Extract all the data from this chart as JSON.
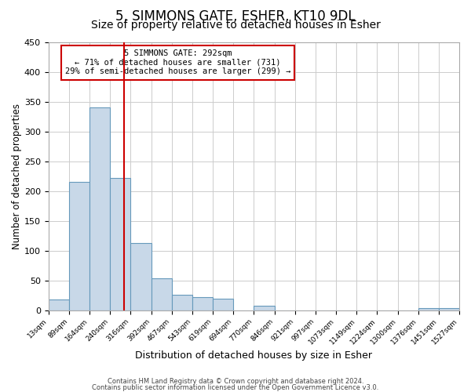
{
  "title": "5, SIMMONS GATE, ESHER, KT10 9DL",
  "subtitle": "Size of property relative to detached houses in Esher",
  "xlabel": "Distribution of detached houses by size in Esher",
  "ylabel": "Number of detached properties",
  "bar_color": "#c8d8e8",
  "bar_edgecolor": "#6699bb",
  "bin_edges": [
    13,
    89,
    164,
    240,
    316,
    392,
    467,
    543,
    619,
    694,
    770,
    846,
    921,
    997,
    1073,
    1149,
    1224,
    1300,
    1376,
    1451,
    1527
  ],
  "bin_labels": [
    "13sqm",
    "89sqm",
    "164sqm",
    "240sqm",
    "316sqm",
    "392sqm",
    "467sqm",
    "543sqm",
    "619sqm",
    "694sqm",
    "770sqm",
    "846sqm",
    "921sqm",
    "997sqm",
    "1073sqm",
    "1149sqm",
    "1224sqm",
    "1300sqm",
    "1376sqm",
    "1451sqm",
    "1527sqm"
  ],
  "bar_heights": [
    18,
    215,
    340,
    222,
    113,
    53,
    26,
    22,
    19,
    0,
    7,
    0,
    0,
    0,
    0,
    0,
    0,
    0,
    3,
    3
  ],
  "vline_x": 292,
  "vline_color": "#cc0000",
  "annotation_line1": "5 SIMMONS GATE: 292sqm",
  "annotation_line2": "← 71% of detached houses are smaller (731)",
  "annotation_line3": "29% of semi-detached houses are larger (299) →",
  "annotation_box_edgecolor": "#cc0000",
  "ylim": [
    0,
    450
  ],
  "yticks": [
    0,
    50,
    100,
    150,
    200,
    250,
    300,
    350,
    400,
    450
  ],
  "background_color": "#ffffff",
  "grid_color": "#cccccc",
  "footnote1": "Contains HM Land Registry data © Crown copyright and database right 2024.",
  "footnote2": "Contains public sector information licensed under the Open Government Licence v3.0.",
  "title_fontsize": 12,
  "subtitle_fontsize": 10
}
